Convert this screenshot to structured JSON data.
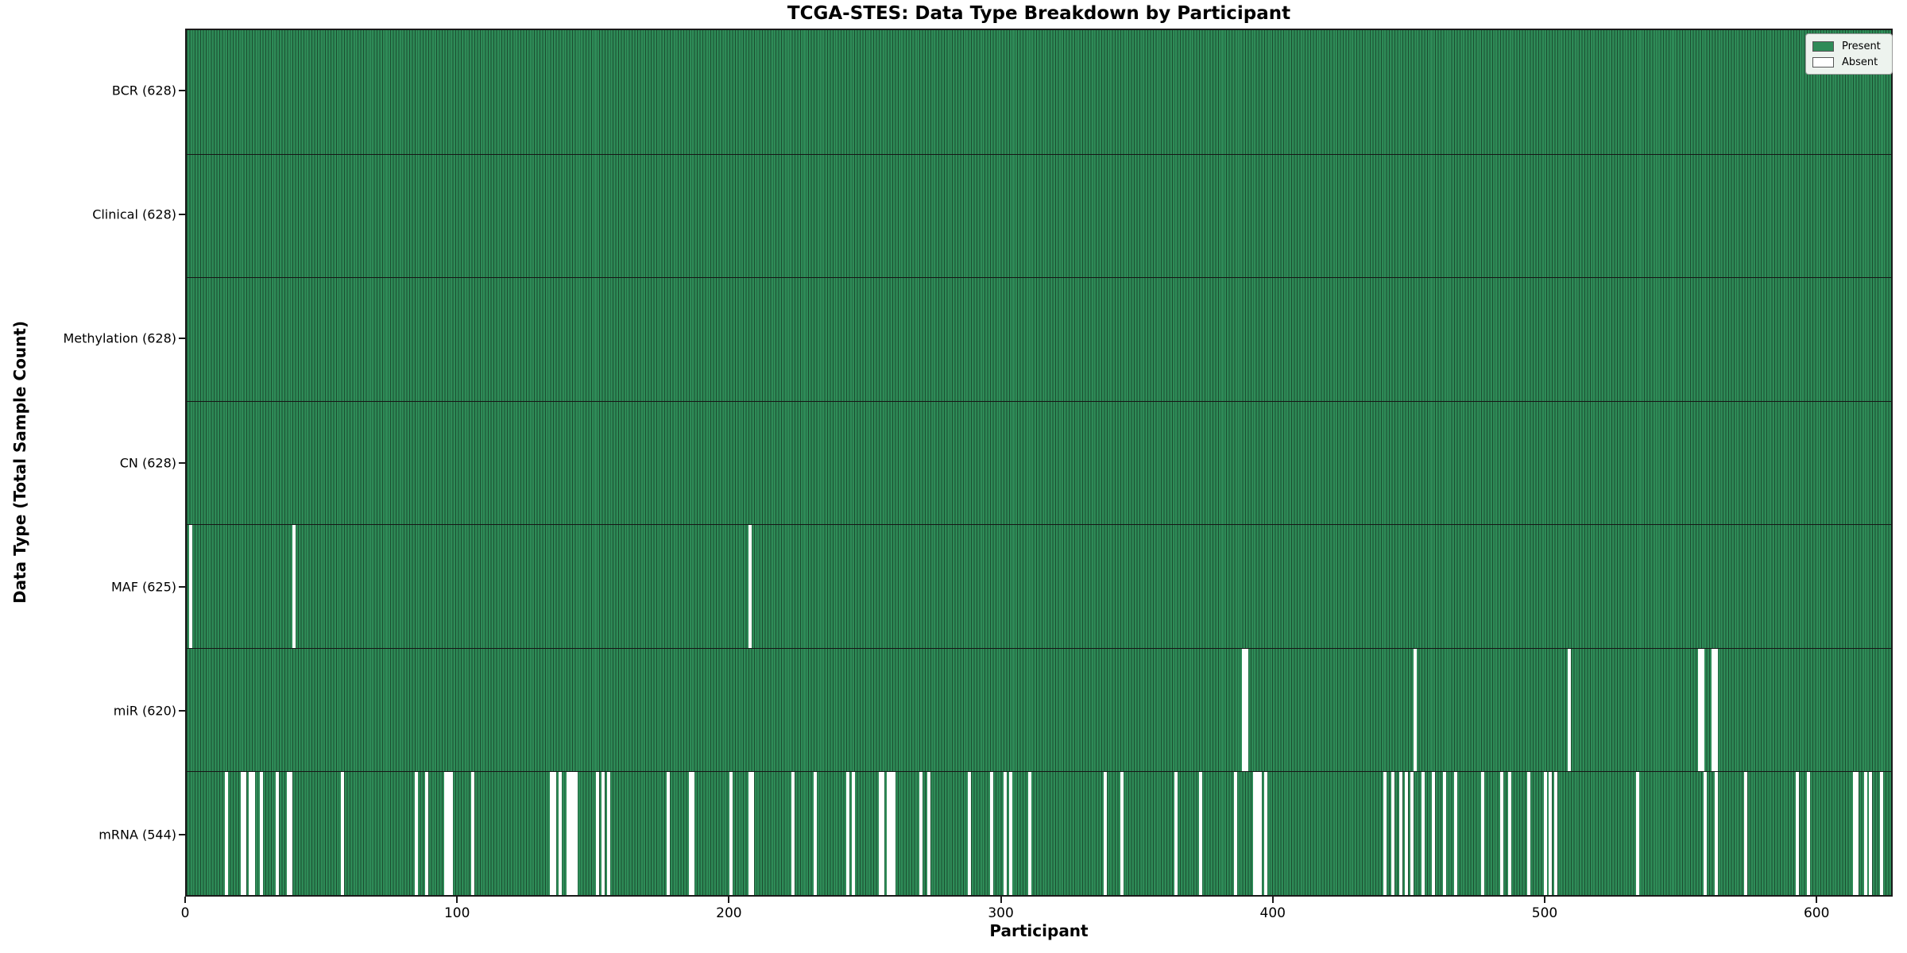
{
  "chart_data": {
    "type": "heatmap",
    "title": "TCGA-STES: Data Type Breakdown by Participant",
    "xlabel": "Participant",
    "ylabel": "Data Type (Total Sample Count)",
    "n_participants": 628,
    "x_ticks": [
      0,
      100,
      200,
      300,
      400,
      500,
      600
    ],
    "legend_position": "upper right",
    "grid": false,
    "legend": [
      {
        "label": "Present",
        "color": "#2e8b57"
      },
      {
        "label": "Absent",
        "color": "#ffffff"
      }
    ],
    "colors": {
      "present": "#2e8b57",
      "absent": "#ffffff",
      "bar_edge": "#1b4d30",
      "separator": "#161616",
      "spine": "#1a1a1a"
    },
    "rows": [
      {
        "data_type": "BCR",
        "label": "BCR (628)",
        "present_count": 628,
        "absent_participants": []
      },
      {
        "data_type": "Clinical",
        "label": "Clinical (628)",
        "present_count": 628,
        "absent_participants": []
      },
      {
        "data_type": "Methylation",
        "label": "Methylation (628)",
        "present_count": 628,
        "absent_participants": []
      },
      {
        "data_type": "CN",
        "label": "CN (628)",
        "present_count": 628,
        "absent_participants": []
      },
      {
        "data_type": "MAF",
        "label": "MAF (625)",
        "present_count": 625,
        "absent_participants": [
          1,
          39,
          207
        ]
      },
      {
        "data_type": "miR",
        "label": "miR (620)",
        "present_count": 620,
        "absent_participants": [
          389,
          390,
          452,
          509,
          557,
          558,
          562,
          563
        ]
      },
      {
        "data_type": "mRNA",
        "label": "mRNA (544)",
        "present_count": 544,
        "absent_participants": [
          14,
          20,
          21,
          23,
          24,
          27,
          33,
          37,
          38,
          57,
          84,
          88,
          95,
          96,
          97,
          105,
          134,
          135,
          137,
          140,
          141,
          142,
          143,
          151,
          153,
          155,
          177,
          185,
          186,
          200,
          207,
          208,
          223,
          231,
          243,
          245,
          255,
          256,
          258,
          259,
          260,
          270,
          273,
          288,
          296,
          301,
          303,
          310,
          338,
          344,
          364,
          373,
          386,
          393,
          394,
          395,
          397,
          441,
          444,
          447,
          449,
          451,
          455,
          459,
          463,
          467,
          477,
          484,
          487,
          494,
          500,
          502,
          504,
          534,
          559,
          563,
          574,
          593,
          597,
          614,
          615,
          618,
          620,
          624
        ]
      }
    ]
  }
}
